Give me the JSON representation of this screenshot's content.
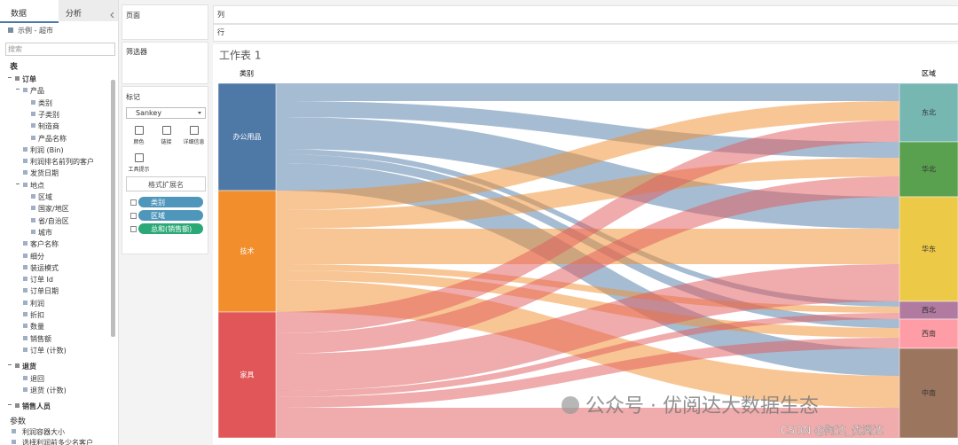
{
  "left_panel": {
    "tabs": [
      "数据",
      "分析"
    ],
    "source": "示例 - 超市",
    "search_placeholder": "搜索",
    "tables_heading": "表",
    "tree": [
      {
        "label": "订单",
        "children": [
          {
            "label": "产品",
            "children": [
              {
                "label": "类别"
              },
              {
                "label": "子类别"
              },
              {
                "label": "制造商"
              },
              {
                "label": "产品名称"
              }
            ]
          },
          {
            "label": "利润 (Bin)"
          },
          {
            "label": "利润排名前列的客户"
          },
          {
            "label": "发货日期"
          },
          {
            "label": "地点",
            "children": [
              {
                "label": "区域"
              },
              {
                "label": "国家/地区"
              },
              {
                "label": "省/自治区"
              },
              {
                "label": "城市"
              }
            ]
          },
          {
            "label": "客户名称"
          },
          {
            "label": "细分"
          },
          {
            "label": "装运模式"
          },
          {
            "label": "订单 Id"
          },
          {
            "label": "订单日期"
          },
          {
            "label": "利润"
          },
          {
            "label": "折扣"
          },
          {
            "label": "数量"
          },
          {
            "label": "销售额"
          },
          {
            "label": "订单 (计数)"
          }
        ]
      },
      {
        "label": "退货",
        "children": [
          {
            "label": "退回"
          },
          {
            "label": "退货 (计数)"
          }
        ]
      },
      {
        "label": "销售人员",
        "children": []
      }
    ],
    "parameters_heading": "参数",
    "parameters": [
      "利润容器大小",
      "选择利润前多少名客户"
    ]
  },
  "cards": {
    "pages": "页面",
    "filters": "筛选器",
    "marks": "标记",
    "mark_type": "Sankey",
    "mark_buttons": [
      "颜色",
      "链接",
      "详细信息",
      "工具提示"
    ],
    "format_button": "格式扩展名",
    "pills": [
      {
        "label": "类别",
        "color": "#4f96bb"
      },
      {
        "label": "区域",
        "color": "#4f96bb"
      },
      {
        "label": "总和(销售额)",
        "color": "#2aa876"
      }
    ]
  },
  "shelves": {
    "columns": "列",
    "rows": "行"
  },
  "chart_data": {
    "type": "sankey",
    "title": "工作表 1",
    "source_label": "类别",
    "target_label": "区域",
    "sources": [
      "办公用品",
      "技术",
      "家具"
    ],
    "source_colors": [
      "#4e79a7",
      "#f28e2b",
      "#e15759"
    ],
    "targets": [
      "东北",
      "华北",
      "华东",
      "西北",
      "西南",
      "中南"
    ],
    "target_colors": [
      "#76b7b2",
      "#59a14f",
      "#edc948",
      "#b07aa1",
      "#ff9da7",
      "#9c755f"
    ],
    "values": [
      [
        20,
        18,
        36,
        6,
        10,
        31
      ],
      [
        22,
        21,
        40,
        7,
        11,
        36
      ],
      [
        24,
        23,
        42,
        7,
        12,
        34
      ]
    ],
    "link_opacity": 0.5
  },
  "watermark": {
    "text": "公众号 · 优阅达大数据生态",
    "credit": "CSDN @阿达_优阅达"
  }
}
